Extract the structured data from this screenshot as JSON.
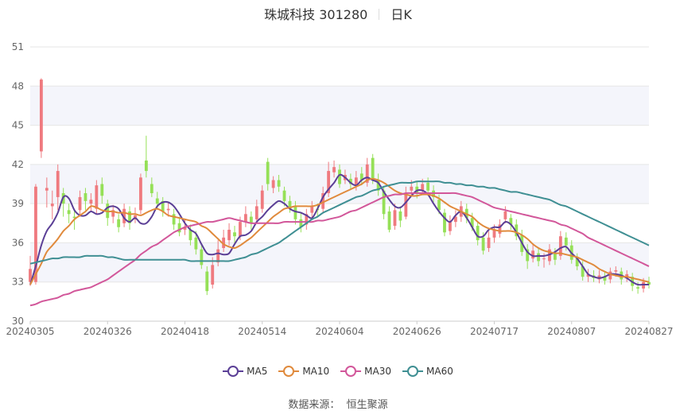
{
  "title": {
    "name": "珠城科技 301280",
    "period": "日K"
  },
  "source": "数据来源：  恒生聚源",
  "colors": {
    "up": "#ef7a7f",
    "down": "#95e057",
    "band": "#f4f5fb",
    "grid": "#e6e6e6"
  },
  "chart_data": {
    "type": "candlestick",
    "y_ticks": [
      "30",
      "33",
      "36",
      "39",
      "42",
      "45",
      "48",
      "51"
    ],
    "ylim": [
      30,
      51
    ],
    "x_ticks": [
      "20240305",
      "20240326",
      "20240418",
      "20240514",
      "20240604",
      "20240626",
      "20240717",
      "20240807",
      "20240827"
    ],
    "legend_position": "bottom",
    "series": [
      {
        "name": "MA5",
        "color": "#5b3f96",
        "values": [
          32.8,
          34.2,
          35.8,
          36.9,
          37.5,
          38.3,
          39.5,
          39.4,
          38.5,
          38.1,
          38.1,
          38.4,
          38.2,
          38.3,
          38.7,
          38.8,
          38.6,
          37.9,
          37.6,
          37.9,
          37.5,
          37.5,
          38.0,
          38.8,
          39.1,
          39.1,
          38.8,
          38.2,
          37.5,
          37.0,
          36.7,
          35.9,
          35.2,
          35.1,
          35.2,
          35.1,
          35.2,
          35.9,
          36.5,
          36.6,
          36.9,
          37.6,
          38.0,
          38.5,
          38.9,
          39.2,
          39.0,
          38.6,
          38.4,
          38.3,
          38.1,
          37.9,
          38.6,
          39.5,
          40.1,
          40.6,
          41.2,
          41.0,
          40.6,
          40.4,
          40.8,
          41.0,
          40.8,
          40.6,
          39.9,
          39.3,
          38.8,
          38.7,
          39.1,
          39.6,
          40.0,
          40.0,
          39.7,
          39.0,
          38.4,
          37.9,
          37.6,
          38.1,
          38.4,
          37.9,
          37.2,
          36.5,
          36.5,
          37.0,
          37.2,
          37.2,
          37.6,
          37.4,
          36.8,
          36.0,
          35.3,
          35.0,
          35.0,
          35.0,
          35.1,
          35.3,
          35.6,
          35.7,
          35.2,
          34.8,
          34.2,
          33.6,
          33.4,
          33.3,
          33.4,
          33.6,
          33.6,
          33.5,
          33.3,
          33.0,
          32.8,
          32.8,
          32.8
        ]
      },
      {
        "name": "MA10",
        "color": "#e08a3c",
        "values": [
          32.8,
          33.6,
          34.4,
          35.3,
          35.8,
          36.3,
          36.9,
          37.3,
          37.8,
          38.1,
          38.4,
          38.8,
          38.7,
          38.5,
          38.4,
          38.4,
          38.3,
          38.3,
          38.2,
          38.2,
          38.1,
          38.3,
          38.5,
          38.6,
          38.4,
          38.1,
          38.0,
          37.9,
          37.8,
          37.7,
          37.6,
          37.3,
          37.1,
          36.7,
          36.3,
          35.9,
          35.7,
          35.6,
          35.8,
          36.1,
          36.4,
          36.8,
          37.2,
          37.6,
          38.0,
          38.3,
          38.6,
          38.7,
          38.8,
          38.8,
          38.8,
          38.8,
          38.9,
          39.1,
          39.3,
          39.5,
          39.7,
          39.9,
          40.1,
          40.3,
          40.5,
          40.8,
          40.9,
          40.8,
          40.6,
          40.3,
          40.0,
          39.8,
          39.7,
          39.6,
          39.6,
          39.7,
          39.7,
          39.6,
          39.4,
          39.1,
          38.8,
          38.6,
          38.4,
          38.2,
          38.0,
          37.6,
          37.3,
          37.1,
          37.0,
          36.9,
          36.9,
          36.9,
          36.8,
          36.6,
          36.3,
          35.9,
          35.6,
          35.4,
          35.3,
          35.2,
          35.2,
          35.1,
          35.0,
          34.9,
          34.7,
          34.5,
          34.3,
          34.0,
          33.8,
          33.6,
          33.5,
          33.4,
          33.4,
          33.3,
          33.2,
          33.1,
          33.0
        ]
      },
      {
        "name": "MA30",
        "color": "#d2579a",
        "values": [
          31.2,
          31.3,
          31.5,
          31.6,
          31.7,
          31.8,
          32.0,
          32.1,
          32.3,
          32.4,
          32.5,
          32.6,
          32.8,
          33.0,
          33.2,
          33.5,
          33.8,
          34.1,
          34.4,
          34.7,
          35.1,
          35.4,
          35.7,
          35.9,
          36.2,
          36.5,
          36.8,
          37.0,
          37.2,
          37.3,
          37.4,
          37.5,
          37.6,
          37.6,
          37.7,
          37.8,
          37.9,
          37.8,
          37.7,
          37.6,
          37.5,
          37.5,
          37.5,
          37.5,
          37.5,
          37.5,
          37.6,
          37.6,
          37.6,
          37.6,
          37.6,
          37.6,
          37.7,
          37.7,
          37.8,
          37.9,
          38.0,
          38.2,
          38.4,
          38.5,
          38.7,
          38.9,
          39.1,
          39.3,
          39.5,
          39.6,
          39.7,
          39.7,
          39.8,
          39.8,
          39.8,
          39.8,
          39.8,
          39.8,
          39.8,
          39.8,
          39.8,
          39.8,
          39.7,
          39.6,
          39.5,
          39.3,
          39.1,
          38.9,
          38.7,
          38.6,
          38.5,
          38.4,
          38.3,
          38.2,
          38.1,
          38.0,
          37.9,
          37.8,
          37.7,
          37.6,
          37.4,
          37.3,
          37.1,
          36.9,
          36.7,
          36.4,
          36.2,
          36.0,
          35.8,
          35.6,
          35.4,
          35.2,
          35.0,
          34.8,
          34.6,
          34.4,
          34.2
        ]
      },
      {
        "name": "MA60",
        "color": "#3f8f93",
        "values": [
          34.4,
          34.5,
          34.6,
          34.7,
          34.8,
          34.8,
          34.9,
          34.9,
          34.9,
          34.9,
          35.0,
          35.0,
          35.0,
          35.0,
          34.9,
          34.9,
          34.8,
          34.7,
          34.7,
          34.7,
          34.7,
          34.7,
          34.7,
          34.7,
          34.7,
          34.7,
          34.7,
          34.7,
          34.7,
          34.6,
          34.6,
          34.6,
          34.6,
          34.6,
          34.6,
          34.6,
          34.6,
          34.7,
          34.8,
          34.9,
          35.1,
          35.2,
          35.4,
          35.6,
          35.8,
          36.0,
          36.3,
          36.6,
          36.9,
          37.2,
          37.5,
          37.8,
          38.0,
          38.3,
          38.5,
          38.7,
          38.9,
          39.1,
          39.3,
          39.5,
          39.6,
          39.8,
          40.0,
          40.1,
          40.3,
          40.4,
          40.5,
          40.6,
          40.6,
          40.6,
          40.7,
          40.7,
          40.7,
          40.7,
          40.7,
          40.6,
          40.6,
          40.5,
          40.5,
          40.4,
          40.4,
          40.3,
          40.3,
          40.2,
          40.2,
          40.1,
          40.0,
          39.9,
          39.9,
          39.8,
          39.7,
          39.6,
          39.5,
          39.4,
          39.3,
          39.1,
          38.9,
          38.8,
          38.6,
          38.4,
          38.2,
          38.0,
          37.8,
          37.6,
          37.4,
          37.2,
          37.0,
          36.8,
          36.6,
          36.4,
          36.2,
          36.0,
          35.8
        ]
      }
    ],
    "candles": [
      [
        33.0,
        34.0,
        32.7,
        35.0
      ],
      [
        33.0,
        40.3,
        32.8,
        40.5
      ],
      [
        43.0,
        48.5,
        42.5,
        48.6
      ],
      [
        40.0,
        40.2,
        38.7,
        41.0
      ],
      [
        38.8,
        39.0,
        37.8,
        40.0
      ],
      [
        39.5,
        41.5,
        38.5,
        42.0
      ],
      [
        39.8,
        39.0,
        38.0,
        40.2
      ],
      [
        38.5,
        38.2,
        37.5,
        39.0
      ],
      [
        38.0,
        37.9,
        37.0,
        38.5
      ],
      [
        38.5,
        39.5,
        38.0,
        40.0
      ],
      [
        39.8,
        39.2,
        38.5,
        40.2
      ],
      [
        39.0,
        39.3,
        38.4,
        39.8
      ],
      [
        38.6,
        40.4,
        38.2,
        40.8
      ],
      [
        40.5,
        39.6,
        39.0,
        41.0
      ],
      [
        39.0,
        37.9,
        37.3,
        39.3
      ],
      [
        38.0,
        38.5,
        37.5,
        38.9
      ],
      [
        37.8,
        37.2,
        36.8,
        38.2
      ],
      [
        37.5,
        38.6,
        37.2,
        39.0
      ],
      [
        38.4,
        37.5,
        37.0,
        38.8
      ],
      [
        37.8,
        38.1,
        37.5,
        38.7
      ],
      [
        38.5,
        41.0,
        38.2,
        41.3
      ],
      [
        42.3,
        41.5,
        41.0,
        44.2
      ],
      [
        40.5,
        39.8,
        39.5,
        41.0
      ],
      [
        39.4,
        39.0,
        38.6,
        39.9
      ],
      [
        39.2,
        38.4,
        38.0,
        39.5
      ],
      [
        38.5,
        38.6,
        38.0,
        39.1
      ],
      [
        38.2,
        37.4,
        37.0,
        38.6
      ],
      [
        37.5,
        36.8,
        36.5,
        38.0
      ],
      [
        37.0,
        37.2,
        36.6,
        37.8
      ],
      [
        37.0,
        36.2,
        35.8,
        37.4
      ],
      [
        36.4,
        35.5,
        35.1,
        36.9
      ],
      [
        35.5,
        34.3,
        34.0,
        35.9
      ],
      [
        33.8,
        32.3,
        32.0,
        34.2
      ],
      [
        32.8,
        34.3,
        32.5,
        34.9
      ],
      [
        34.5,
        35.5,
        34.2,
        36.2
      ],
      [
        35.6,
        36.4,
        35.3,
        37.0
      ],
      [
        36.2,
        37.0,
        35.8,
        37.5
      ],
      [
        36.8,
        36.5,
        36.0,
        37.3
      ],
      [
        36.5,
        37.6,
        36.2,
        38.0
      ],
      [
        37.6,
        38.2,
        37.2,
        38.8
      ],
      [
        38.0,
        37.5,
        37.0,
        38.4
      ],
      [
        37.8,
        38.8,
        37.5,
        39.3
      ],
      [
        38.6,
        40.0,
        38.3,
        40.4
      ],
      [
        42.2,
        40.5,
        40.0,
        42.5
      ],
      [
        40.2,
        40.8,
        39.8,
        41.1
      ],
      [
        40.8,
        40.3,
        39.9,
        41.2
      ],
      [
        40.0,
        39.2,
        38.8,
        40.3
      ],
      [
        39.2,
        38.6,
        38.3,
        39.6
      ],
      [
        38.8,
        37.8,
        37.4,
        39.2
      ],
      [
        37.8,
        37.2,
        36.8,
        38.3
      ],
      [
        37.4,
        38.2,
        37.0,
        38.6
      ],
      [
        38.3,
        38.8,
        37.9,
        39.2
      ],
      [
        38.6,
        38.5,
        38.0,
        39.0
      ],
      [
        38.6,
        39.8,
        38.3,
        40.3
      ],
      [
        39.8,
        41.5,
        39.5,
        42.2
      ],
      [
        41.4,
        41.8,
        41.0,
        42.3
      ],
      [
        41.6,
        40.5,
        40.2,
        42.0
      ],
      [
        40.8,
        41.2,
        40.5,
        41.6
      ],
      [
        40.9,
        40.5,
        40.1,
        41.3
      ],
      [
        40.4,
        41.0,
        40.0,
        41.5
      ],
      [
        41.3,
        40.8,
        40.4,
        41.8
      ],
      [
        40.6,
        42.0,
        40.3,
        42.5
      ],
      [
        42.5,
        40.8,
        40.5,
        42.8
      ],
      [
        40.8,
        40.0,
        39.6,
        41.3
      ],
      [
        40.0,
        38.2,
        37.8,
        40.3
      ],
      [
        38.4,
        37.0,
        36.8,
        38.8
      ],
      [
        37.3,
        38.5,
        37.0,
        39.0
      ],
      [
        38.4,
        37.7,
        37.2,
        38.8
      ],
      [
        38.0,
        39.8,
        37.8,
        40.3
      ],
      [
        40.0,
        40.3,
        39.6,
        40.8
      ],
      [
        40.3,
        39.8,
        39.4,
        40.7
      ],
      [
        40.0,
        40.5,
        39.7,
        40.9
      ],
      [
        40.6,
        40.0,
        39.6,
        41.0
      ],
      [
        40.0,
        39.5,
        39.1,
        40.4
      ],
      [
        39.3,
        38.5,
        38.2,
        39.7
      ],
      [
        38.3,
        36.8,
        36.5,
        38.6
      ],
      [
        36.9,
        37.6,
        36.6,
        38.1
      ],
      [
        37.6,
        38.0,
        37.2,
        38.5
      ],
      [
        38.0,
        38.8,
        37.6,
        39.2
      ],
      [
        38.6,
        37.9,
        37.5,
        39.0
      ],
      [
        37.9,
        37.2,
        36.9,
        38.3
      ],
      [
        37.3,
        36.2,
        35.8,
        37.6
      ],
      [
        36.4,
        35.4,
        35.1,
        36.8
      ],
      [
        35.6,
        36.4,
        35.3,
        36.9
      ],
      [
        36.4,
        37.0,
        36.0,
        37.4
      ],
      [
        36.7,
        37.4,
        36.4,
        37.8
      ],
      [
        37.8,
        38.4,
        37.5,
        38.8
      ],
      [
        37.9,
        37.4,
        37.0,
        38.2
      ],
      [
        37.4,
        36.5,
        36.2,
        37.8
      ],
      [
        36.6,
        35.3,
        35.0,
        37.0
      ],
      [
        35.5,
        34.6,
        34.0,
        35.9
      ],
      [
        34.8,
        35.4,
        34.5,
        35.9
      ],
      [
        35.2,
        34.6,
        34.2,
        35.6
      ],
      [
        34.8,
        34.8,
        34.1,
        35.2
      ],
      [
        34.6,
        35.5,
        34.3,
        35.9
      ],
      [
        35.2,
        34.7,
        34.3,
        35.6
      ],
      [
        35.0,
        36.5,
        34.7,
        36.9
      ],
      [
        36.4,
        35.8,
        35.4,
        36.8
      ],
      [
        35.8,
        34.7,
        34.4,
        36.2
      ],
      [
        34.8,
        34.2,
        33.9,
        35.2
      ],
      [
        34.2,
        33.4,
        33.1,
        34.6
      ],
      [
        33.4,
        33.6,
        33.0,
        34.0
      ],
      [
        33.5,
        33.3,
        33.0,
        33.9
      ],
      [
        33.2,
        33.5,
        32.9,
        33.9
      ],
      [
        33.4,
        33.1,
        32.8,
        33.8
      ],
      [
        33.2,
        33.8,
        32.9,
        34.1
      ],
      [
        33.8,
        33.9,
        33.4,
        34.2
      ],
      [
        33.8,
        33.2,
        32.8,
        34.1
      ],
      [
        33.3,
        33.6,
        33.0,
        33.9
      ],
      [
        33.4,
        32.7,
        32.3,
        33.7
      ],
      [
        32.6,
        32.5,
        32.1,
        33.0
      ],
      [
        32.5,
        33.0,
        32.2,
        33.3
      ],
      [
        33.0,
        32.8,
        32.5,
        33.4
      ]
    ]
  }
}
